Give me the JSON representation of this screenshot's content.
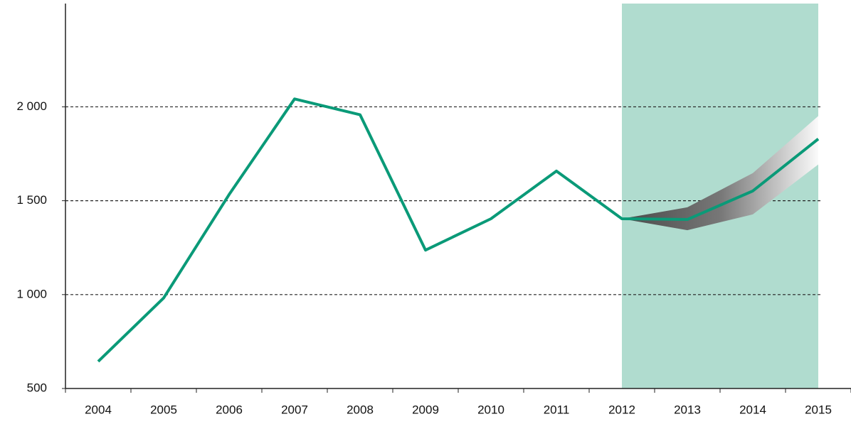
{
  "chart_data": {
    "type": "line",
    "categories": [
      "2004",
      "2005",
      "2006",
      "2007",
      "2008",
      "2009",
      "2010",
      "2011",
      "2012",
      "2013",
      "2014",
      "2015"
    ],
    "series": [
      {
        "color": "#0a9a78",
        "values": [
          644,
          982,
          1533,
          2042,
          1958,
          1237,
          1404,
          1658,
          1404,
          1400,
          1552,
          1829
        ]
      }
    ],
    "band_upper": [
      null,
      null,
      null,
      null,
      null,
      null,
      null,
      null,
      1404,
      1465,
      1647,
      1951
    ],
    "band_lower": [
      null,
      null,
      null,
      null,
      null,
      null,
      null,
      null,
      1404,
      1343,
      1427,
      1693
    ],
    "shaded": [
      "2012",
      "2015"
    ],
    "shade_color": "#b0dccf",
    "ylim": [
      500,
      2550
    ],
    "yticks": [
      500,
      {
        "value": 1000,
        "label": "1 000"
      },
      {
        "value": 1500,
        "label": "1 500"
      },
      {
        "value": 2000,
        "label": "2 000"
      }
    ],
    "grid": true
  }
}
